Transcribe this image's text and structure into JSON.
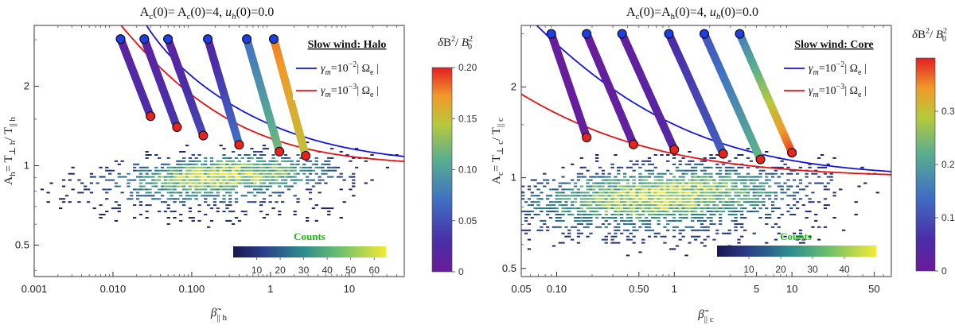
{
  "chart_data": [
    {
      "type": "scatter",
      "title": "A_c(0)= A_c(0)=4, u_h(0)=0.0",
      "title_parts": {
        "a": "A",
        "b": "c",
        "c": "(0)= A",
        "d": "c",
        "e": "(0)=4, ",
        "f": "u",
        "g": "h",
        "h": "(0)=0.0"
      },
      "xlabel": {
        "sym": "β̃",
        "sub": "|| h"
      },
      "ylabel": "A_h= T_⊥h/ T_||h",
      "ylabel_parts": {
        "a": "A",
        "b": "h",
        "c": "= T",
        "d": "⊥ h",
        "e": "/ T",
        "f": "|| h"
      },
      "xscale": "log",
      "yscale": "log",
      "xlim": [
        0.001,
        50
      ],
      "ylim": [
        0.38,
        3.4
      ],
      "xticks": [
        {
          "v": 0.001,
          "label": "0.001"
        },
        {
          "v": 0.01,
          "label": "0.010"
        },
        {
          "v": 0.1,
          "label": "0.100"
        },
        {
          "v": 1,
          "label": "1"
        },
        {
          "v": 10,
          "label": "10"
        }
      ],
      "yticks": [
        {
          "v": 0.5,
          "label": "0.5"
        },
        {
          "v": 1,
          "label": "1"
        },
        {
          "v": 2,
          "label": "2"
        }
      ],
      "legend_title": "Slow wind: Halo",
      "legend_position": "top-right",
      "legend": [
        {
          "label": "γm=10⁻²| Ωe |",
          "color": "#1414e0",
          "sym": "γ",
          "sub": "m",
          "eq": "=10",
          "sup": "−2",
          "rest": "| Ω",
          "sub2": "e",
          "end": " |"
        },
        {
          "label": "γm=10⁻³| Ωe |",
          "color": "#e81010",
          "sym": "γ",
          "sub": "m",
          "eq": "=10",
          "sup": "−3",
          "rest": "| Ω",
          "sub2": "e",
          "end": " |"
        }
      ],
      "threshold_curves": [
        {
          "name": "γm=10^-2",
          "color": "#1414e0",
          "a": 0.43,
          "b": 0.42,
          "beta0": 0.01
        },
        {
          "name": "γm=10^-3",
          "color": "#e81010",
          "a": 0.27,
          "b": 0.5,
          "beta0": 0.0
        }
      ],
      "trajectories": [
        {
          "start": [
            0.0125,
            3.02
          ],
          "end": [
            0.03,
            1.54
          ],
          "dB2_start": 0.01,
          "dB2_end": 0.03
        },
        {
          "start": [
            0.025,
            3.02
          ],
          "end": [
            0.065,
            1.4
          ],
          "dB2_start": 0.01,
          "dB2_end": 0.035
        },
        {
          "start": [
            0.05,
            3.02
          ],
          "end": [
            0.14,
            1.3
          ],
          "dB2_start": 0.01,
          "dB2_end": 0.045
        },
        {
          "start": [
            0.16,
            3.02
          ],
          "end": [
            0.4,
            1.2
          ],
          "dB2_start": 0.015,
          "dB2_end": 0.07
        },
        {
          "start": [
            0.5,
            3.02
          ],
          "end": [
            1.3,
            1.13
          ],
          "dB2_start": 0.07,
          "dB2_end": 0.12
        },
        {
          "start": [
            1.1,
            3.02
          ],
          "end": [
            2.8,
            1.09
          ],
          "dB2_start": 0.18,
          "dB2_end": 0.15
        }
      ],
      "histogram": {
        "center_logx": -0.6,
        "center_logy": -0.04,
        "spread_logx": 0.9,
        "spread_logy": 0.05,
        "n_bins": [
          120,
          80
        ]
      },
      "counts_colorbar": {
        "label": "Counts",
        "ticks": [
          "10",
          "20",
          "30",
          "40",
          "50",
          "60"
        ],
        "range": [
          0,
          65
        ]
      },
      "value_colorbar": {
        "label": "δB²/ B₀²",
        "ticks": [
          "0",
          "0.05",
          "0.10",
          "0.15",
          "0.20"
        ],
        "range": [
          0,
          0.2
        ]
      }
    },
    {
      "type": "scatter",
      "title": "A_c(0)=A_h(0)=4, u_h(0)=0.0",
      "title_parts": {
        "a": "A",
        "b": "c",
        "c": "(0)=A",
        "d": "h",
        "e": "(0)=4, ",
        "f": "u",
        "g": "h",
        "h": "(0)=0.0"
      },
      "xlabel": {
        "sym": "β̃",
        "sub": "|| c"
      },
      "ylabel": "A_c= T_⊥c/ T_||c",
      "ylabel_parts": {
        "a": "A",
        "b": "c",
        "c": "= T",
        "d": "⊥ c",
        "e": "/ T",
        "f": "|| c"
      },
      "xscale": "log",
      "yscale": "log",
      "xlim": [
        0.05,
        70
      ],
      "ylim": [
        0.47,
        3.2
      ],
      "xticks": [
        {
          "v": 0.05,
          "label": "0.05"
        },
        {
          "v": 0.1,
          "label": "0.10"
        },
        {
          "v": 0.5,
          "label": "0.50"
        },
        {
          "v": 1,
          "label": "1"
        },
        {
          "v": 5,
          "label": "5"
        },
        {
          "v": 10,
          "label": "10"
        },
        {
          "v": 50,
          "label": "50"
        }
      ],
      "yticks": [
        {
          "v": 0.5,
          "label": "0.5"
        },
        {
          "v": 1,
          "label": "1"
        },
        {
          "v": 2,
          "label": "2"
        }
      ],
      "legend_title": "Slow wind: Core",
      "legend_position": "top-right",
      "legend": [
        {
          "label": "γm=10⁻²| Ωe |",
          "color": "#1414e0",
          "sym": "γ",
          "sub": "m",
          "eq": "=10",
          "sup": "−2",
          "rest": "| Ω",
          "sub2": "e",
          "end": " |"
        },
        {
          "label": "γm=10⁻³| Ωe |",
          "color": "#e81010",
          "sym": "γ",
          "sub": "m",
          "eq": "=10",
          "sup": "−3",
          "rest": "| Ω",
          "sub2": "e",
          "end": " |"
        }
      ],
      "threshold_curves": [
        {
          "name": "γm=10^-2",
          "color": "#1414e0",
          "a": 0.5,
          "b": 0.55,
          "beta0": 0.0
        },
        {
          "name": "γm=10^-3",
          "color": "#e81010",
          "a": 0.2,
          "b": 0.5,
          "beta0": 0.0
        }
      ],
      "trajectories": [
        {
          "start": [
            0.09,
            3.0
          ],
          "end": [
            0.18,
            1.36
          ],
          "dB2_start": 0.005,
          "dB2_end": 0.01
        },
        {
          "start": [
            0.18,
            3.0
          ],
          "end": [
            0.45,
            1.29
          ],
          "dB2_start": 0.005,
          "dB2_end": 0.02
        },
        {
          "start": [
            0.36,
            3.0
          ],
          "end": [
            1.0,
            1.24
          ],
          "dB2_start": 0.01,
          "dB2_end": 0.04
        },
        {
          "start": [
            0.9,
            3.0
          ],
          "end": [
            2.6,
            1.2
          ],
          "dB2_start": 0.05,
          "dB2_end": 0.12
        },
        {
          "start": [
            1.8,
            3.0
          ],
          "end": [
            5.4,
            1.15
          ],
          "dB2_start": 0.1,
          "dB2_end": 0.23
        },
        {
          "start": [
            3.6,
            3.0
          ],
          "end": [
            10.0,
            1.21
          ],
          "dB2_start": 0.15,
          "dB2_end": 0.38
        }
      ],
      "histogram": {
        "center_logx": -0.1,
        "center_logy": -0.06,
        "spread_logx": 0.75,
        "spread_logy": 0.06,
        "n_bins": [
          120,
          80
        ]
      },
      "counts_colorbar": {
        "label": "Counts",
        "ticks": [
          "10",
          "20",
          "30",
          "40"
        ],
        "range": [
          0,
          50
        ]
      },
      "value_colorbar": {
        "label": "δB²/ B₀²",
        "ticks": [
          "0",
          "0.1",
          "0.2",
          "0.3"
        ],
        "range": [
          0,
          0.4
        ]
      }
    }
  ]
}
